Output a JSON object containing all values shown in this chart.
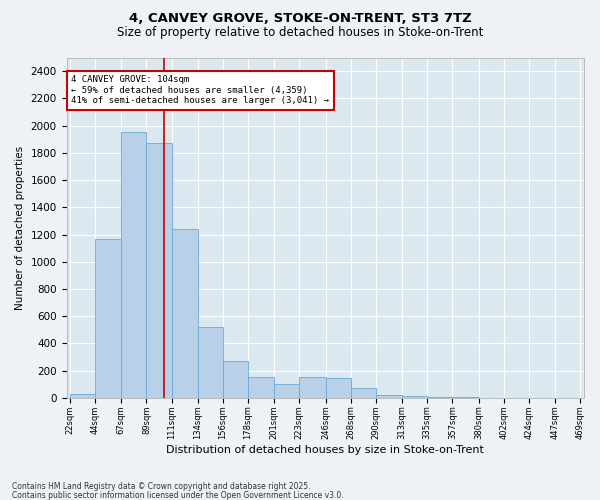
{
  "title_line1": "4, CANVEY GROVE, STOKE-ON-TRENT, ST3 7TZ",
  "title_line2": "Size of property relative to detached houses in Stoke-on-Trent",
  "xlabel": "Distribution of detached houses by size in Stoke-on-Trent",
  "ylabel": "Number of detached properties",
  "property_size": 104,
  "property_label": "4 CANVEY GROVE: 104sqm",
  "annotation_line1": "← 59% of detached houses are smaller (4,359)",
  "annotation_line2": "41% of semi-detached houses are larger (3,041) →",
  "bar_edges": [
    22,
    44,
    67,
    89,
    111,
    134,
    156,
    178,
    201,
    223,
    246,
    268,
    290,
    313,
    335,
    357,
    380,
    402,
    424,
    447,
    469
  ],
  "bar_heights": [
    30,
    1170,
    1950,
    1870,
    1240,
    520,
    270,
    155,
    100,
    155,
    150,
    70,
    25,
    15,
    10,
    5,
    3,
    2,
    1,
    1
  ],
  "bar_color": "#b8d0e8",
  "bar_edge_color": "#6aaad4",
  "vline_color": "#cc0000",
  "annotation_box_color": "#cc0000",
  "plot_bg_color": "#dce8f0",
  "fig_bg_color": "#eef2f7",
  "grid_color": "#ffffff",
  "ylim": [
    0,
    2500
  ],
  "yticks": [
    0,
    200,
    400,
    600,
    800,
    1000,
    1200,
    1400,
    1600,
    1800,
    2000,
    2200,
    2400
  ],
  "footnote1": "Contains HM Land Registry data © Crown copyright and database right 2025.",
  "footnote2": "Contains public sector information licensed under the Open Government Licence v3.0."
}
